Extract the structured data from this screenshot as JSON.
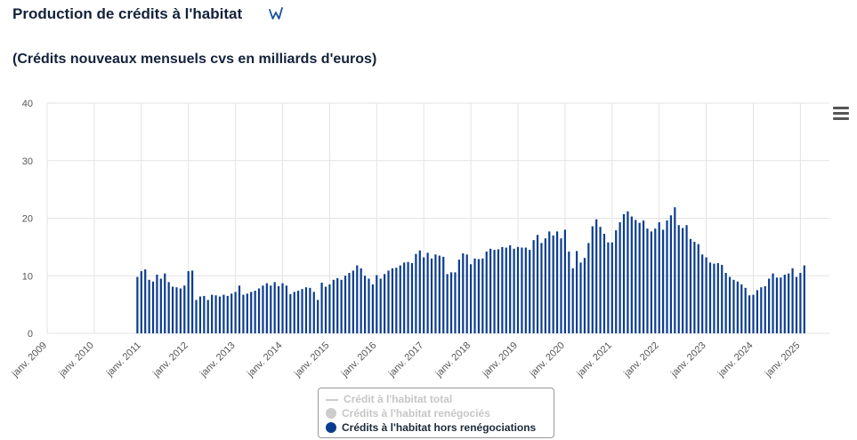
{
  "header": {
    "title": "Production de crédits à l'habitat",
    "subtitle": "(Crédits nouveaux mensuels cvs en milliards d'euros)"
  },
  "colors": {
    "bar": "#0b3d8f",
    "grid": "#e3e3e3",
    "axis_text": "#555555",
    "legend_off": "#c6c6c6"
  },
  "icons": {
    "logo": "w-logo-icon",
    "menu": "hamburger-menu-icon"
  },
  "legend": {
    "items": [
      {
        "label": "Crédit à l'habitat total",
        "symbol": "line",
        "active": false
      },
      {
        "label": "Crédits à l'habitat renégociés",
        "symbol": "dot",
        "active": false
      },
      {
        "label": "Crédits à l'habitat hors renégociations",
        "symbol": "dot",
        "active": true
      }
    ]
  },
  "chart_data": {
    "type": "bar",
    "x_start": "2010-12",
    "x_frequency": "monthly",
    "xlim": [
      "2009-01",
      "2025-01"
    ],
    "ylim": [
      0,
      40
    ],
    "yticks": [
      0,
      10,
      20,
      30,
      40
    ],
    "xticks": [
      "janv. 2009",
      "janv. 2010",
      "janv. 2011",
      "janv. 2012",
      "janv. 2013",
      "janv. 2014",
      "janv. 2015",
      "janv. 2016",
      "janv. 2017",
      "janv. 2018",
      "janv. 2019",
      "janv. 2020",
      "janv. 2021",
      "janv. 2022",
      "janv. 2023",
      "janv. 2024",
      "janv. 2025"
    ],
    "grid": true,
    "series": [
      {
        "name": "Crédits à l'habitat hors renégociations",
        "values": [
          9.8,
          10.8,
          11.1,
          9.3,
          9.0,
          10.2,
          9.5,
          10.4,
          8.9,
          8.1,
          8.0,
          7.8,
          8.3,
          10.8,
          10.9,
          5.8,
          6.4,
          6.5,
          5.8,
          6.7,
          6.6,
          6.4,
          6.7,
          6.5,
          6.9,
          7.2,
          8.3,
          6.7,
          6.9,
          7.2,
          7.4,
          7.8,
          8.3,
          8.7,
          8.3,
          8.9,
          8.2,
          8.7,
          8.3,
          6.8,
          7.2,
          7.4,
          7.7,
          8.0,
          7.9,
          7.2,
          5.8,
          8.8,
          8.1,
          8.5,
          9.3,
          9.6,
          9.3,
          10.0,
          10.5,
          10.9,
          11.8,
          11.3,
          10.0,
          9.5,
          8.5,
          10.1,
          9.5,
          10.3,
          10.9,
          11.3,
          11.4,
          11.8,
          12.3,
          12.4,
          12.2,
          13.8,
          14.4,
          13.2,
          14.0,
          13.0,
          13.7,
          13.5,
          13.3,
          10.3,
          10.6,
          10.6,
          12.8,
          13.9,
          13.7,
          12.0,
          13.0,
          12.9,
          13.0,
          14.2,
          14.7,
          14.5,
          14.6,
          15.0,
          14.9,
          15.3,
          14.7,
          15.0,
          14.9,
          14.9,
          14.5,
          16.2,
          17.1,
          15.7,
          16.5,
          17.7,
          17.0,
          17.7,
          16.5,
          18.0,
          14.2,
          11.3,
          14.3,
          12.3,
          13.1,
          15.7,
          18.6,
          19.8,
          18.5,
          17.3,
          15.8,
          15.8,
          17.9,
          19.3,
          20.7,
          21.2,
          20.3,
          19.7,
          19.2,
          19.6,
          18.2,
          17.7,
          18.2,
          19.3,
          18.0,
          19.6,
          20.5,
          21.9,
          18.8,
          18.3,
          18.8,
          16.4,
          15.9,
          15.5,
          13.7,
          13.2,
          12.3,
          12.1,
          12.2,
          11.9,
          10.5,
          9.8,
          9.3,
          9.0,
          8.5,
          7.9,
          6.6,
          6.7,
          7.5,
          8.0,
          8.2,
          9.5,
          10.4,
          9.7,
          9.7,
          10.2,
          10.4,
          11.3,
          9.8,
          10.5,
          11.8
        ]
      }
    ]
  }
}
